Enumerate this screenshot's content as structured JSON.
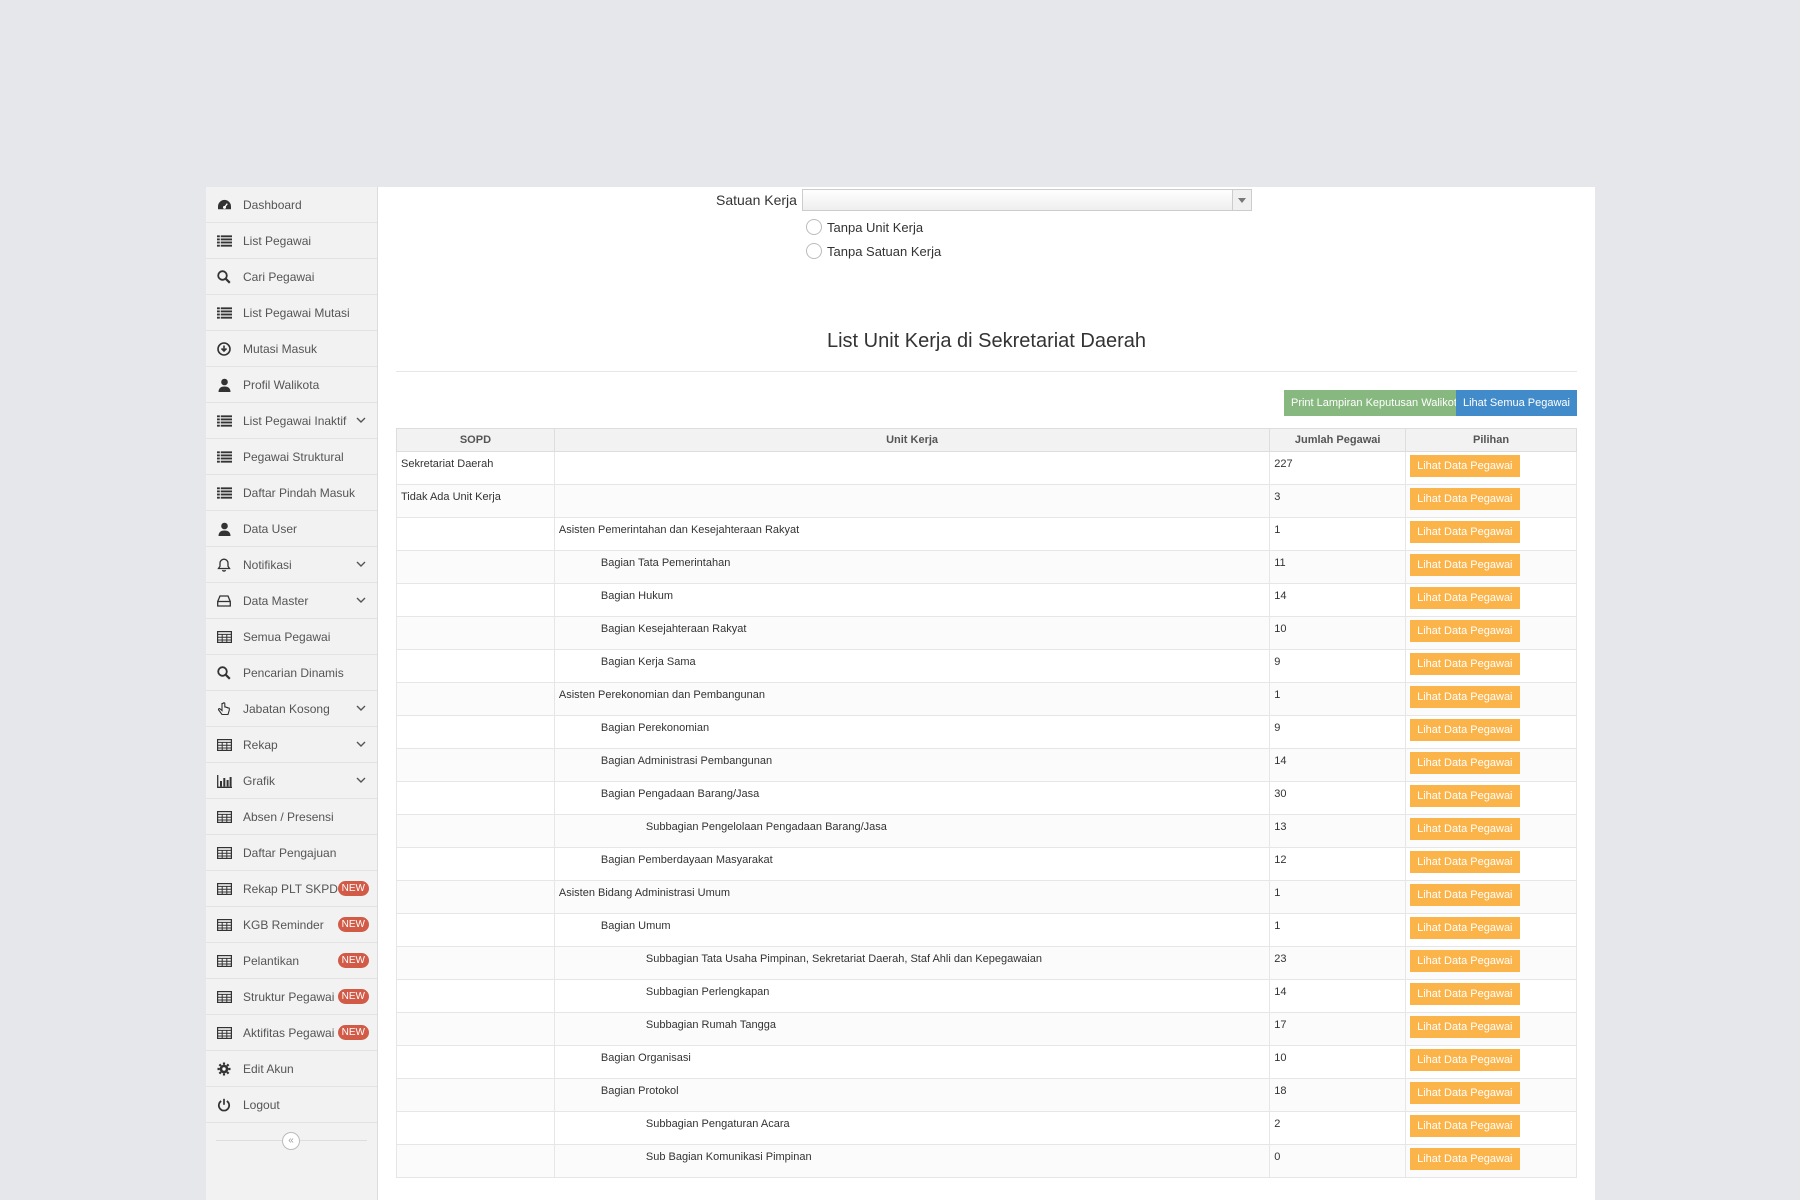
{
  "sidebar": {
    "items": [
      {
        "label": "Dashboard",
        "icon": "dashboard-icon"
      },
      {
        "label": "List Pegawai",
        "icon": "list-icon"
      },
      {
        "label": "Cari Pegawai",
        "icon": "search-icon"
      },
      {
        "label": "List Pegawai Mutasi",
        "icon": "list-icon"
      },
      {
        "label": "Mutasi Masuk",
        "icon": "download-circle-icon"
      },
      {
        "label": "Profil Walikota",
        "icon": "user-icon"
      },
      {
        "label": "List Pegawai Inaktif",
        "icon": "list-icon",
        "caret": true
      },
      {
        "label": "Pegawai Struktural",
        "icon": "list-icon"
      },
      {
        "label": "Daftar Pindah Masuk",
        "icon": "list-icon"
      },
      {
        "label": "Data User",
        "icon": "user-icon"
      },
      {
        "label": "Notifikasi",
        "icon": "bell-icon",
        "caret": true
      },
      {
        "label": "Data Master",
        "icon": "drive-icon",
        "caret": true
      },
      {
        "label": "Semua Pegawai",
        "icon": "table-icon"
      },
      {
        "label": "Pencarian Dinamis",
        "icon": "search-icon"
      },
      {
        "label": "Jabatan Kosong",
        "icon": "hand-pointer-icon",
        "caret": true
      },
      {
        "label": "Rekap",
        "icon": "table-icon",
        "caret": true
      },
      {
        "label": "Grafik",
        "icon": "bar-chart-icon",
        "caret": true
      },
      {
        "label": "Absen / Presensi",
        "icon": "table-icon"
      },
      {
        "label": "Daftar Pengajuan",
        "icon": "table-icon"
      },
      {
        "label": "Rekap PLT SKPD",
        "icon": "table-icon",
        "badge": "NEW"
      },
      {
        "label": "KGB Reminder",
        "icon": "table-icon",
        "badge": "NEW"
      },
      {
        "label": "Pelantikan",
        "icon": "table-icon",
        "badge": "NEW"
      },
      {
        "label": "Struktur Pegawai",
        "icon": "table-icon",
        "badge": "NEW"
      },
      {
        "label": "Aktifitas Pegawai",
        "icon": "table-icon",
        "badge": "NEW"
      },
      {
        "label": "Edit Akun",
        "icon": "gear-icon"
      },
      {
        "label": "Logout",
        "icon": "power-icon"
      }
    ],
    "collapse_glyph": "«"
  },
  "filter": {
    "satuan_kerja_label": "Satuan Kerja :",
    "satuan_kerja_value": "",
    "radio_tanpa_unit": "Tanpa Unit Kerja",
    "radio_tanpa_satuan": "Tanpa Satuan Kerja"
  },
  "page": {
    "title": "List Unit Kerja di Sekretariat Daerah",
    "print_button": "Print Lampiran Keputusan Walikota",
    "all_button": "Lihat Semua Pegawai"
  },
  "table": {
    "headers": [
      "SOPD",
      "Unit Kerja",
      "Jumlah Pegawai",
      "Pilihan"
    ],
    "action_label": "Lihat Data Pegawai",
    "rows": [
      {
        "sopd": "Sekretariat Daerah",
        "unit": "",
        "level": 1,
        "count": "227"
      },
      {
        "sopd": "Tidak Ada Unit Kerja",
        "unit": "",
        "level": 1,
        "count": "3"
      },
      {
        "sopd": "",
        "unit": "Asisten Pemerintahan dan Kesejahteraan Rakyat",
        "level": 1,
        "count": "1"
      },
      {
        "sopd": "",
        "unit": "Bagian Tata Pemerintahan",
        "level": 2,
        "count": "11"
      },
      {
        "sopd": "",
        "unit": "Bagian Hukum",
        "level": 2,
        "count": "14"
      },
      {
        "sopd": "",
        "unit": "Bagian Kesejahteraan Rakyat",
        "level": 2,
        "count": "10"
      },
      {
        "sopd": "",
        "unit": "Bagian Kerja Sama",
        "level": 2,
        "count": "9"
      },
      {
        "sopd": "",
        "unit": "Asisten Perekonomian dan Pembangunan",
        "level": 1,
        "count": "1"
      },
      {
        "sopd": "",
        "unit": "Bagian Perekonomian",
        "level": 2,
        "count": "9"
      },
      {
        "sopd": "",
        "unit": "Bagian Administrasi Pembangunan",
        "level": 2,
        "count": "14"
      },
      {
        "sopd": "",
        "unit": "Bagian Pengadaan Barang/Jasa",
        "level": 2,
        "count": "30"
      },
      {
        "sopd": "",
        "unit": "Subbagian Pengelolaan Pengadaan Barang/Jasa",
        "level": 3,
        "count": "13"
      },
      {
        "sopd": "",
        "unit": "Bagian Pemberdayaan Masyarakat",
        "level": 2,
        "count": "12"
      },
      {
        "sopd": "",
        "unit": "Asisten Bidang Administrasi Umum",
        "level": 1,
        "count": "1"
      },
      {
        "sopd": "",
        "unit": "Bagian Umum",
        "level": 2,
        "count": "1"
      },
      {
        "sopd": "",
        "unit": "Subbagian Tata Usaha Pimpinan, Sekretariat Daerah, Staf Ahli dan Kepegawaian",
        "level": 3,
        "count": "23"
      },
      {
        "sopd": "",
        "unit": "Subbagian Perlengkapan",
        "level": 3,
        "count": "14"
      },
      {
        "sopd": "",
        "unit": "Subbagian Rumah Tangga",
        "level": 3,
        "count": "17"
      },
      {
        "sopd": "",
        "unit": "Bagian Organisasi",
        "level": 2,
        "count": "10"
      },
      {
        "sopd": "",
        "unit": "Bagian Protokol",
        "level": 2,
        "count": "18"
      },
      {
        "sopd": "",
        "unit": "Subbagian Pengaturan Acara",
        "level": 3,
        "count": "2"
      },
      {
        "sopd": "",
        "unit": "Sub Bagian Komunikasi Pimpinan",
        "level": 3,
        "count": "0"
      }
    ]
  }
}
